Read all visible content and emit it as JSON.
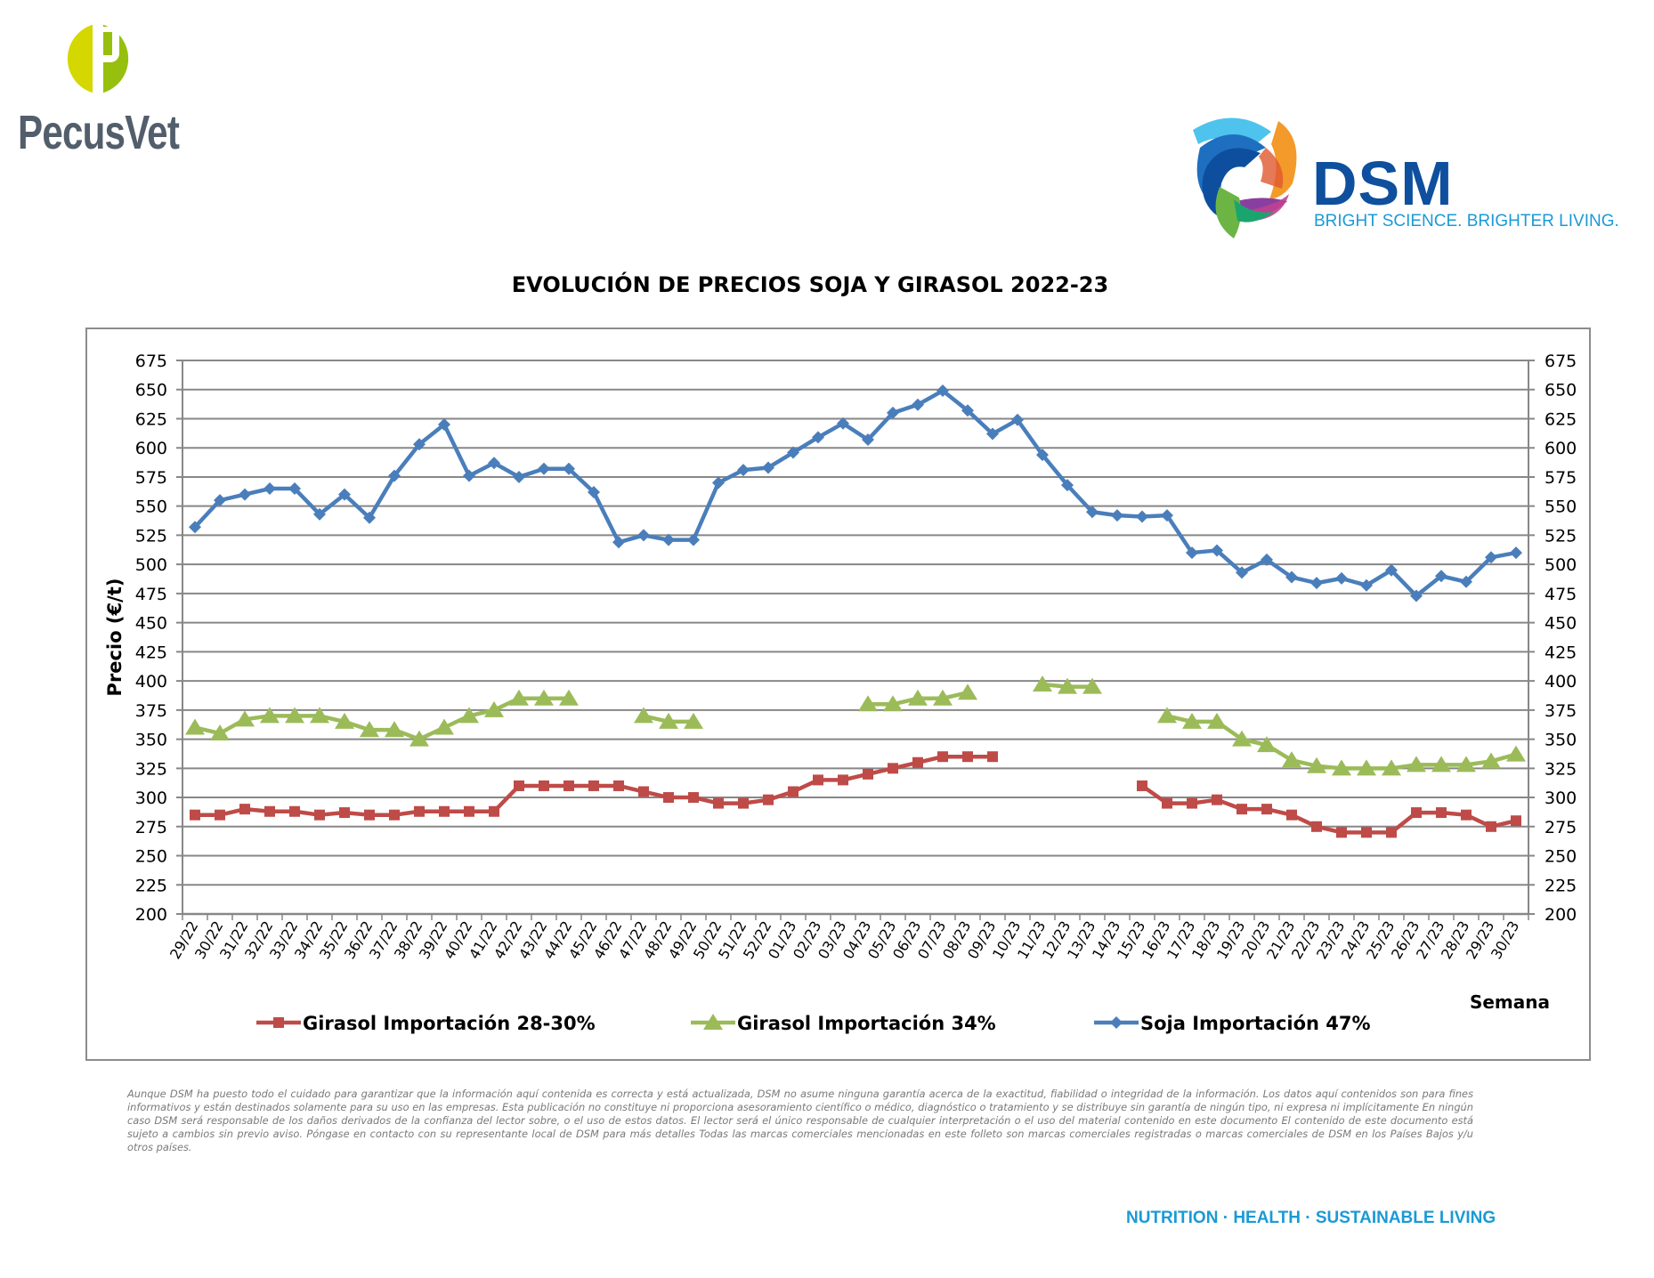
{
  "logos": {
    "pecusvet": "PecusVet",
    "dsm": "DSM",
    "dsm_tagline": "BRIGHT SCIENCE. BRIGHTER LIVING."
  },
  "footer": {
    "disclaimer": "Aunque DSM ha puesto todo el cuidado para garantizar que la información aquí contenida es correcta y está actualizada, DSM no asume ninguna garantía acerca de la exactitud, fiabilidad o integridad de la información. Los datos aquí contenidos son para fines informativos y están destinados solamente para su uso en las empresas. Esta publicación no constituye ni proporciona asesoramiento científico o médico, diagnóstico o tratamiento y se distribuye sin garantía de ningún tipo, ni expresa ni implícitamente En ningún caso DSM será responsable de los daños derivados de la confianza del lector sobre, o el uso de estos datos. El lector será el único responsable de cualquier interpretación o el uso del material contenido en este documento El contenido de este documento está sujeto a cambios sin previo aviso. Póngase en contacto con su representante local de DSM para más detalles Todas las marcas comerciales mencionadas en este folleto son marcas comerciales registradas o marcas comerciales de DSM en los Países Bajos y/u otros países.",
    "tagline": "NUTRITION · HEALTH · SUSTAINABLE LIVING"
  },
  "chart_data": {
    "type": "line",
    "title": "EVOLUCIÓN DE PRECIOS SOJA Y GIRASOL 2022-23",
    "xlabel": "Semana",
    "ylabel": "Precio (€/t)",
    "ylim": [
      200,
      675
    ],
    "ytick_step": 25,
    "yticks": [
      "200",
      "225",
      "250",
      "275",
      "300",
      "325",
      "350",
      "375",
      "400",
      "425",
      "450",
      "475",
      "500",
      "525",
      "550",
      "575",
      "600",
      "625",
      "650",
      "675"
    ],
    "grid": true,
    "legend_position": "bottom",
    "categories": [
      "29/22",
      "30/22",
      "31/22",
      "32/22",
      "33/22",
      "34/22",
      "35/22",
      "36/22",
      "37/22",
      "38/22",
      "39/22",
      "40/22",
      "41/22",
      "42/22",
      "43/22",
      "44/22",
      "45/22",
      "46/22",
      "47/22",
      "48/22",
      "49/22",
      "50/22",
      "51/22",
      "52/22",
      "01/23",
      "02/23",
      "03/23",
      "04/23",
      "05/23",
      "06/23",
      "07/23",
      "08/23",
      "09/23",
      "10/23",
      "11/23",
      "12/23",
      "13/23",
      "14/23",
      "15/23",
      "16/23",
      "17/23",
      "18/23",
      "19/23",
      "20/23",
      "21/23",
      "22/23",
      "23/23",
      "24/23",
      "25/23",
      "26/23",
      "27/23",
      "28/23",
      "29/23",
      "30/23"
    ],
    "series": [
      {
        "name": "Girasol Importación 28-30%",
        "color": "#be4b48",
        "marker": "square",
        "values": [
          285,
          285,
          290,
          288,
          288,
          285,
          287,
          285,
          285,
          288,
          288,
          288,
          288,
          310,
          310,
          310,
          310,
          310,
          305,
          300,
          300,
          295,
          295,
          298,
          305,
          315,
          315,
          320,
          325,
          330,
          335,
          335,
          335,
          null,
          null,
          null,
          null,
          null,
          310,
          295,
          295,
          298,
          290,
          290,
          285,
          275,
          270,
          270,
          270,
          287,
          287,
          285,
          275,
          280
        ]
      },
      {
        "name": "Girasol Importación 34%",
        "color": "#9bbb59",
        "marker": "triangle",
        "values": [
          360,
          355,
          367,
          370,
          370,
          370,
          365,
          358,
          358,
          350,
          360,
          370,
          375,
          385,
          385,
          385,
          null,
          null,
          370,
          365,
          365,
          null,
          null,
          null,
          null,
          null,
          null,
          380,
          380,
          385,
          385,
          390,
          null,
          null,
          397,
          395,
          395,
          null,
          null,
          370,
          365,
          365,
          350,
          345,
          332,
          327,
          325,
          325,
          325,
          328,
          328,
          328,
          331,
          337
        ]
      },
      {
        "name": "Soja Importación 47%",
        "color": "#4a7ebb",
        "marker": "diamond",
        "values": [
          532,
          555,
          560,
          565,
          565,
          543,
          560,
          540,
          576,
          603,
          620,
          576,
          587,
          575,
          582,
          582,
          562,
          519,
          525,
          521,
          521,
          570,
          581,
          583,
          596,
          609,
          621,
          607,
          630,
          637,
          649,
          632,
          612,
          624,
          594,
          568,
          545,
          542,
          541,
          542,
          510,
          512,
          493,
          504,
          489,
          484,
          488,
          482,
          495,
          473,
          490,
          485,
          506,
          510
        ]
      }
    ]
  }
}
